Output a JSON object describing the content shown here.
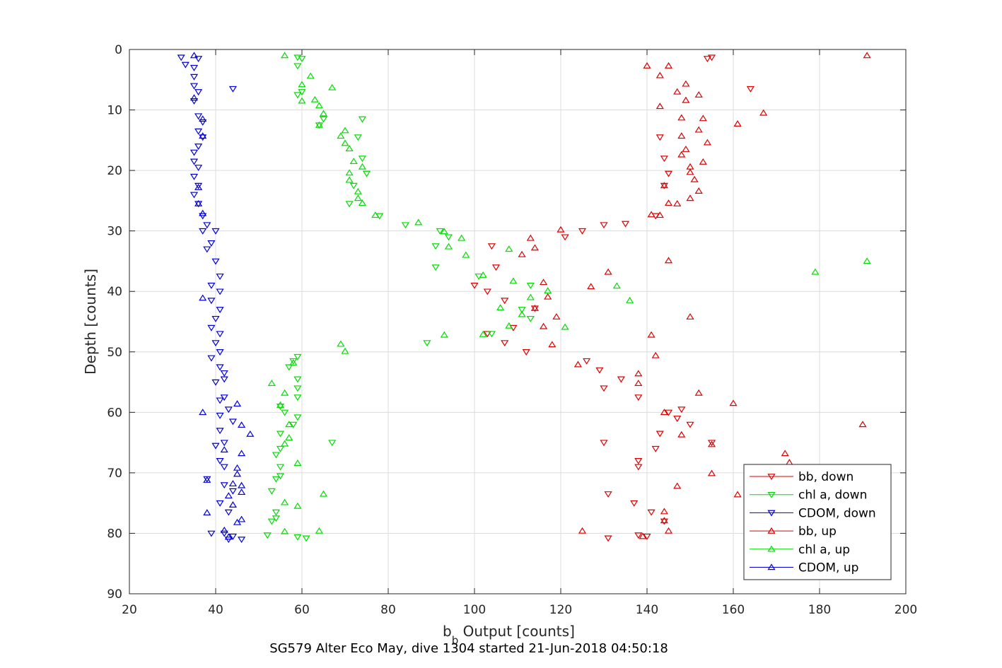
{
  "chart_data": {
    "type": "scatter",
    "title": "",
    "xlabel": "b_b Output [counts]",
    "xlabel_main": "b",
    "xlabel_sub": "b",
    "xlabel_rest": " Output [counts]",
    "ylabel": "Depth [counts]",
    "caption": "SG579 Alter Eco May, dive 1304 started 21-Jun-2018 04:50:18",
    "xlim": [
      20,
      200
    ],
    "ylim": [
      0,
      90
    ],
    "y_reversed": true,
    "xticks": [
      20,
      40,
      60,
      80,
      100,
      120,
      140,
      160,
      180,
      200
    ],
    "yticks": [
      0,
      10,
      20,
      30,
      40,
      50,
      60,
      70,
      80,
      90
    ],
    "grid": true,
    "legend_position": "bottom-right",
    "series": [
      {
        "name": "bb, down",
        "color": "#dd0000",
        "marker": "triangle-down",
        "points": [
          [
            155,
            1.3
          ],
          [
            154,
            1.5
          ],
          [
            164,
            6.5
          ],
          [
            143,
            14.5
          ],
          [
            144,
            18
          ],
          [
            145,
            20.5
          ],
          [
            144,
            22.5
          ],
          [
            142,
            27.5
          ],
          [
            135,
            28.8
          ],
          [
            130,
            29
          ],
          [
            125,
            30
          ],
          [
            121,
            31
          ],
          [
            104,
            32.5
          ],
          [
            105,
            36
          ],
          [
            100,
            39
          ],
          [
            103,
            40
          ],
          [
            107,
            41.5
          ],
          [
            109,
            46
          ],
          [
            103,
            47
          ],
          [
            107,
            48.5
          ],
          [
            112,
            50
          ],
          [
            114,
            42.8
          ],
          [
            126,
            51.5
          ],
          [
            129,
            53
          ],
          [
            130,
            56
          ],
          [
            134,
            54.5
          ],
          [
            138,
            57.5
          ],
          [
            145,
            60
          ],
          [
            148,
            59.5
          ],
          [
            150,
            62
          ],
          [
            143,
            63.5
          ],
          [
            142,
            66
          ],
          [
            138,
            68
          ],
          [
            138,
            69
          ],
          [
            131,
            73.5
          ],
          [
            137,
            75
          ],
          [
            130,
            65
          ],
          [
            141,
            76.5
          ],
          [
            144,
            78
          ],
          [
            140,
            80.5
          ],
          [
            138,
            80.3
          ],
          [
            131,
            80.8
          ],
          [
            147,
            61
          ],
          [
            155,
            65
          ]
        ]
      },
      {
        "name": "chl a, down",
        "color": "#00dd00",
        "marker": "triangle-down",
        "points": [
          [
            59,
            1.3
          ],
          [
            60,
            1.5
          ],
          [
            59,
            2.7
          ],
          [
            59,
            7.5
          ],
          [
            60,
            7
          ],
          [
            65,
            11.5
          ],
          [
            64,
            12.5
          ],
          [
            74,
            11.5
          ],
          [
            73,
            14.5
          ],
          [
            74,
            18
          ],
          [
            75,
            20.5
          ],
          [
            72,
            22.5
          ],
          [
            71,
            25.5
          ],
          [
            78,
            27.5
          ],
          [
            84,
            29
          ],
          [
            92,
            30
          ],
          [
            94,
            31
          ],
          [
            91,
            32.5
          ],
          [
            91,
            36
          ],
          [
            101,
            37.5
          ],
          [
            104,
            47
          ],
          [
            113,
            39
          ],
          [
            111,
            43
          ],
          [
            113,
            44.5
          ],
          [
            89,
            48.5
          ],
          [
            59,
            50.8
          ],
          [
            58,
            51.5
          ],
          [
            57,
            52.5
          ],
          [
            59,
            54.5
          ],
          [
            59,
            56
          ],
          [
            59,
            57.5
          ],
          [
            55,
            59
          ],
          [
            56,
            60
          ],
          [
            59,
            60.8
          ],
          [
            58,
            62
          ],
          [
            55,
            63.5
          ],
          [
            54,
            67
          ],
          [
            55,
            69
          ],
          [
            55,
            70.5
          ],
          [
            54,
            71
          ],
          [
            53,
            73
          ],
          [
            54,
            76.5
          ],
          [
            54,
            77.5
          ],
          [
            53,
            78
          ],
          [
            52,
            80.3
          ],
          [
            59,
            80.6
          ],
          [
            61,
            80.8
          ],
          [
            67,
            65
          ],
          [
            55,
            66
          ]
        ]
      },
      {
        "name": "CDOM, down",
        "color": "#0000dd",
        "marker": "triangle-down",
        "points": [
          [
            32,
            1.3
          ],
          [
            33,
            2.5
          ],
          [
            36,
            1.5
          ],
          [
            35,
            3
          ],
          [
            35,
            4.5
          ],
          [
            35,
            6
          ],
          [
            36,
            7
          ],
          [
            44,
            6.5
          ],
          [
            35,
            8.5
          ],
          [
            36,
            11
          ],
          [
            37,
            12
          ],
          [
            36,
            13.5
          ],
          [
            37,
            14.5
          ],
          [
            36,
            16
          ],
          [
            35,
            17
          ],
          [
            35,
            18.5
          ],
          [
            36,
            19.5
          ],
          [
            35,
            21
          ],
          [
            36,
            22.5
          ],
          [
            35,
            24
          ],
          [
            36,
            25.5
          ],
          [
            37,
            27.5
          ],
          [
            38,
            29
          ],
          [
            40,
            30
          ],
          [
            37,
            30
          ],
          [
            39,
            32
          ],
          [
            38,
            33
          ],
          [
            40,
            35
          ],
          [
            41,
            37.5
          ],
          [
            39,
            39
          ],
          [
            41,
            40
          ],
          [
            39,
            41.5
          ],
          [
            41,
            43
          ],
          [
            40,
            44.5
          ],
          [
            39,
            46
          ],
          [
            41,
            47
          ],
          [
            40,
            48.5
          ],
          [
            41,
            50
          ],
          [
            39,
            51
          ],
          [
            41,
            52.5
          ],
          [
            42,
            53.5
          ],
          [
            42,
            54.5
          ],
          [
            40,
            55
          ],
          [
            42,
            57.5
          ],
          [
            41,
            58
          ],
          [
            43,
            59.5
          ],
          [
            41,
            60.5
          ],
          [
            44,
            61.5
          ],
          [
            41,
            63
          ],
          [
            40,
            65.5
          ],
          [
            42,
            65
          ],
          [
            41,
            68
          ],
          [
            42,
            69
          ],
          [
            38,
            71
          ],
          [
            42,
            72
          ],
          [
            44,
            73
          ],
          [
            41,
            75
          ],
          [
            43,
            76.5
          ],
          [
            39,
            80
          ],
          [
            42,
            80
          ],
          [
            43,
            81
          ],
          [
            44,
            80.5
          ],
          [
            46,
            81
          ]
        ]
      },
      {
        "name": "bb, up",
        "color": "#dd0000",
        "marker": "triangle-up",
        "points": [
          [
            191,
            1
          ],
          [
            140,
            2.7
          ],
          [
            145,
            2.7
          ],
          [
            143,
            4.3
          ],
          [
            149,
            5.7
          ],
          [
            147,
            7
          ],
          [
            152,
            7.5
          ],
          [
            149,
            8.4
          ],
          [
            143,
            9.4
          ],
          [
            167,
            10.5
          ],
          [
            148,
            11.3
          ],
          [
            153,
            11.4
          ],
          [
            161,
            12.3
          ],
          [
            152,
            13.3
          ],
          [
            148,
            14.3
          ],
          [
            154,
            15.4
          ],
          [
            149,
            16.5
          ],
          [
            148,
            17.4
          ],
          [
            153,
            18.6
          ],
          [
            150,
            19.4
          ],
          [
            150,
            20.3
          ],
          [
            151,
            21.5
          ],
          [
            144,
            22.5
          ],
          [
            152,
            23.4
          ],
          [
            150,
            24.6
          ],
          [
            145,
            25.4
          ],
          [
            147,
            25.5
          ],
          [
            141,
            27.3
          ],
          [
            143,
            27.4
          ],
          [
            120,
            29.8
          ],
          [
            113,
            31.2
          ],
          [
            114,
            32.8
          ],
          [
            111,
            33.9
          ],
          [
            145,
            34.9
          ],
          [
            131,
            36.8
          ],
          [
            127,
            39.2
          ],
          [
            116,
            38.5
          ],
          [
            117,
            40.9
          ],
          [
            119,
            44.2
          ],
          [
            150,
            44.2
          ],
          [
            116,
            45.8
          ],
          [
            118,
            48.8
          ],
          [
            141,
            47.2
          ],
          [
            142,
            50.6
          ],
          [
            124,
            52.1
          ],
          [
            138,
            53.6
          ],
          [
            138,
            55.2
          ],
          [
            152,
            56.8
          ],
          [
            160,
            58.5
          ],
          [
            144,
            60
          ],
          [
            190,
            62
          ],
          [
            148,
            63.7
          ],
          [
            155,
            65.3
          ],
          [
            172,
            66.8
          ],
          [
            173,
            68.3
          ],
          [
            155,
            70.1
          ],
          [
            147,
            72.2
          ],
          [
            161,
            73.6
          ],
          [
            144,
            76.4
          ],
          [
            144,
            77.9
          ],
          [
            145,
            79.6
          ],
          [
            125,
            79.6
          ],
          [
            139,
            80.5
          ],
          [
            114,
            42.8
          ]
        ]
      },
      {
        "name": "chl a, up",
        "color": "#00dd00",
        "marker": "triangle-up",
        "points": [
          [
            56,
            1
          ],
          [
            191,
            35
          ],
          [
            179,
            36.8
          ],
          [
            60,
            5.8
          ],
          [
            62,
            4.4
          ],
          [
            60,
            8.5
          ],
          [
            63,
            8.3
          ],
          [
            64,
            9.3
          ],
          [
            65,
            10.6
          ],
          [
            64,
            12.5
          ],
          [
            67,
            6.3
          ],
          [
            69,
            14.3
          ],
          [
            70,
            13.4
          ],
          [
            70,
            15.5
          ],
          [
            71,
            16.4
          ],
          [
            72,
            18.5
          ],
          [
            74,
            19.4
          ],
          [
            71,
            20.4
          ],
          [
            71,
            21.6
          ],
          [
            73,
            23.5
          ],
          [
            73,
            24.6
          ],
          [
            74,
            25.4
          ],
          [
            77,
            27.4
          ],
          [
            87,
            28.6
          ],
          [
            93,
            30.1
          ],
          [
            97,
            31.2
          ],
          [
            94,
            32.6
          ],
          [
            108,
            33
          ],
          [
            98,
            34
          ],
          [
            102,
            37.3
          ],
          [
            109,
            38.3
          ],
          [
            117,
            39.9
          ],
          [
            133,
            39.1
          ],
          [
            136,
            41.5
          ],
          [
            113,
            41
          ],
          [
            106,
            42.7
          ],
          [
            111,
            43.8
          ],
          [
            108,
            45.7
          ],
          [
            121,
            45.9
          ],
          [
            102,
            47.1
          ],
          [
            93,
            47.2
          ],
          [
            69,
            48.7
          ],
          [
            70,
            49.9
          ],
          [
            58,
            51.8
          ],
          [
            53,
            55.2
          ],
          [
            56,
            56.8
          ],
          [
            55,
            58.8
          ],
          [
            57,
            62
          ],
          [
            56,
            65.2
          ],
          [
            59,
            68.4
          ],
          [
            64,
            79.6
          ],
          [
            56,
            79.7
          ],
          [
            56,
            74.9
          ],
          [
            65,
            73.5
          ],
          [
            59,
            75.5
          ],
          [
            57,
            64.2
          ]
        ]
      },
      {
        "name": "CDOM, up",
        "color": "#0000dd",
        "marker": "triangle-up",
        "points": [
          [
            35,
            1
          ],
          [
            35,
            8
          ],
          [
            37,
            11.5
          ],
          [
            37,
            14.3
          ],
          [
            36,
            22.8
          ],
          [
            37,
            27.1
          ],
          [
            36,
            25.5
          ],
          [
            37,
            41.1
          ],
          [
            37,
            60
          ],
          [
            45,
            58.6
          ],
          [
            46,
            62.1
          ],
          [
            48,
            63.6
          ],
          [
            42,
            66.2
          ],
          [
            46,
            66.8
          ],
          [
            45,
            69.2
          ],
          [
            45,
            70.2
          ],
          [
            44,
            71.8
          ],
          [
            46,
            72.1
          ],
          [
            46,
            73.2
          ],
          [
            43,
            73.8
          ],
          [
            38,
            76.6
          ],
          [
            46,
            77.7
          ],
          [
            45,
            78.2
          ],
          [
            44,
            75.3
          ],
          [
            42,
            79.5
          ],
          [
            43,
            80.6
          ],
          [
            38,
            71.2
          ]
        ]
      }
    ]
  }
}
